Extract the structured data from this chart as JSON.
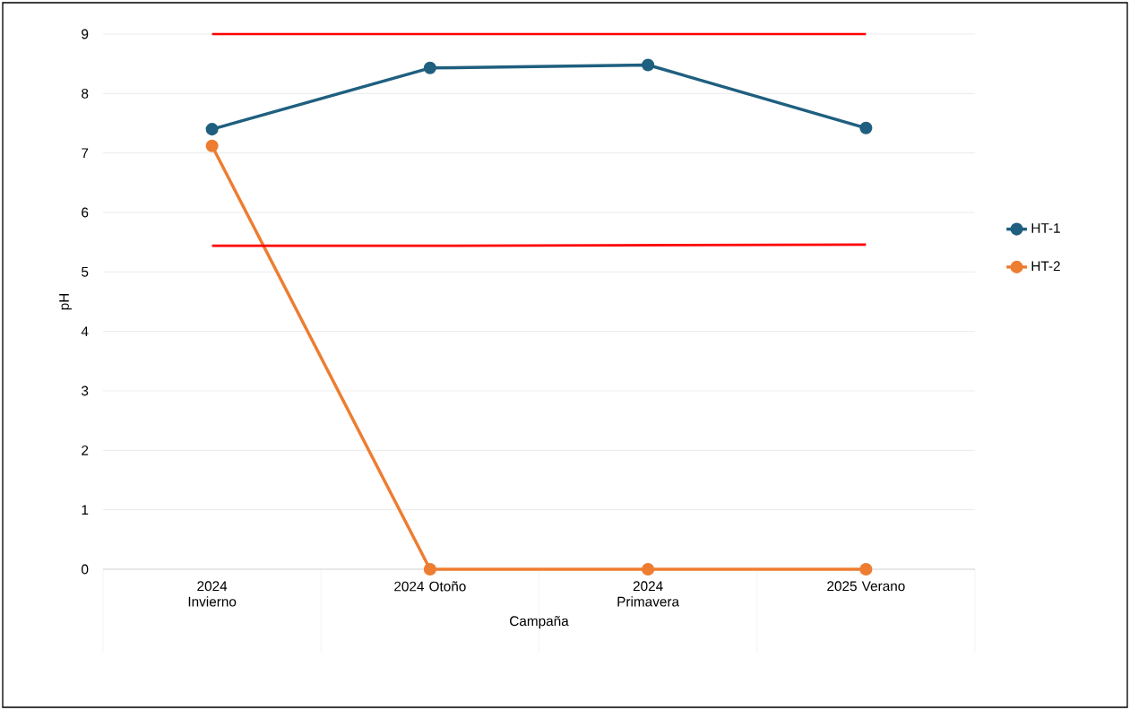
{
  "chart_data": {
    "type": "line",
    "xlabel": "Campaña",
    "ylabel": "pH",
    "categories": [
      "2024 Invierno",
      "2024 Otoño",
      "2024 Primavera",
      "2025 Verano"
    ],
    "series": [
      {
        "name": "HT-1",
        "color": "#1f5f7f",
        "values": [
          7.4,
          8.43,
          8.48,
          7.42
        ]
      },
      {
        "name": "HT-2",
        "color": "#ed7d31",
        "values": [
          7.12,
          0,
          0,
          0
        ]
      },
      {
        "color": "#ff0000",
        "values": [
          9,
          9,
          9,
          9
        ],
        "marker": "none"
      },
      {
        "color": "#ff0000",
        "values": [
          5.44,
          5.44,
          5.45,
          5.46
        ],
        "marker": "none"
      }
    ],
    "ylim": [
      0,
      9
    ],
    "yticks": [
      0,
      1,
      2,
      3,
      4,
      5,
      6,
      7,
      8,
      9
    ],
    "grid": "y",
    "legend": "right",
    "marker": "circle"
  }
}
